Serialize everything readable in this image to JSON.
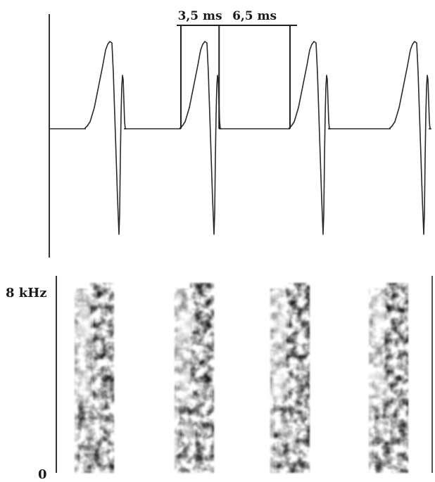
{
  "chart_data": [
    {
      "type": "line",
      "title": "",
      "xlabel": "",
      "ylabel": "",
      "annotations": [
        {
          "label": "3,5 ms",
          "value_ms": 3.5
        },
        {
          "label": "6,5 ms",
          "value_ms": 6.5
        }
      ],
      "pulse_period_ms": 10,
      "pulse_count": 4,
      "grid": false,
      "colors": {
        "trace": "#2a2a2a",
        "axis": "#333333",
        "bracket": "#222222"
      }
    },
    {
      "type": "heatmap",
      "title": "",
      "ylabel": "",
      "ytick_labels": [
        "8 kHz",
        "0"
      ],
      "ylim_khz": [
        0,
        8
      ],
      "band_count": 4,
      "grid": false,
      "colors": {
        "energy": "#1e1e1e",
        "background": "#ffffff"
      }
    }
  ]
}
